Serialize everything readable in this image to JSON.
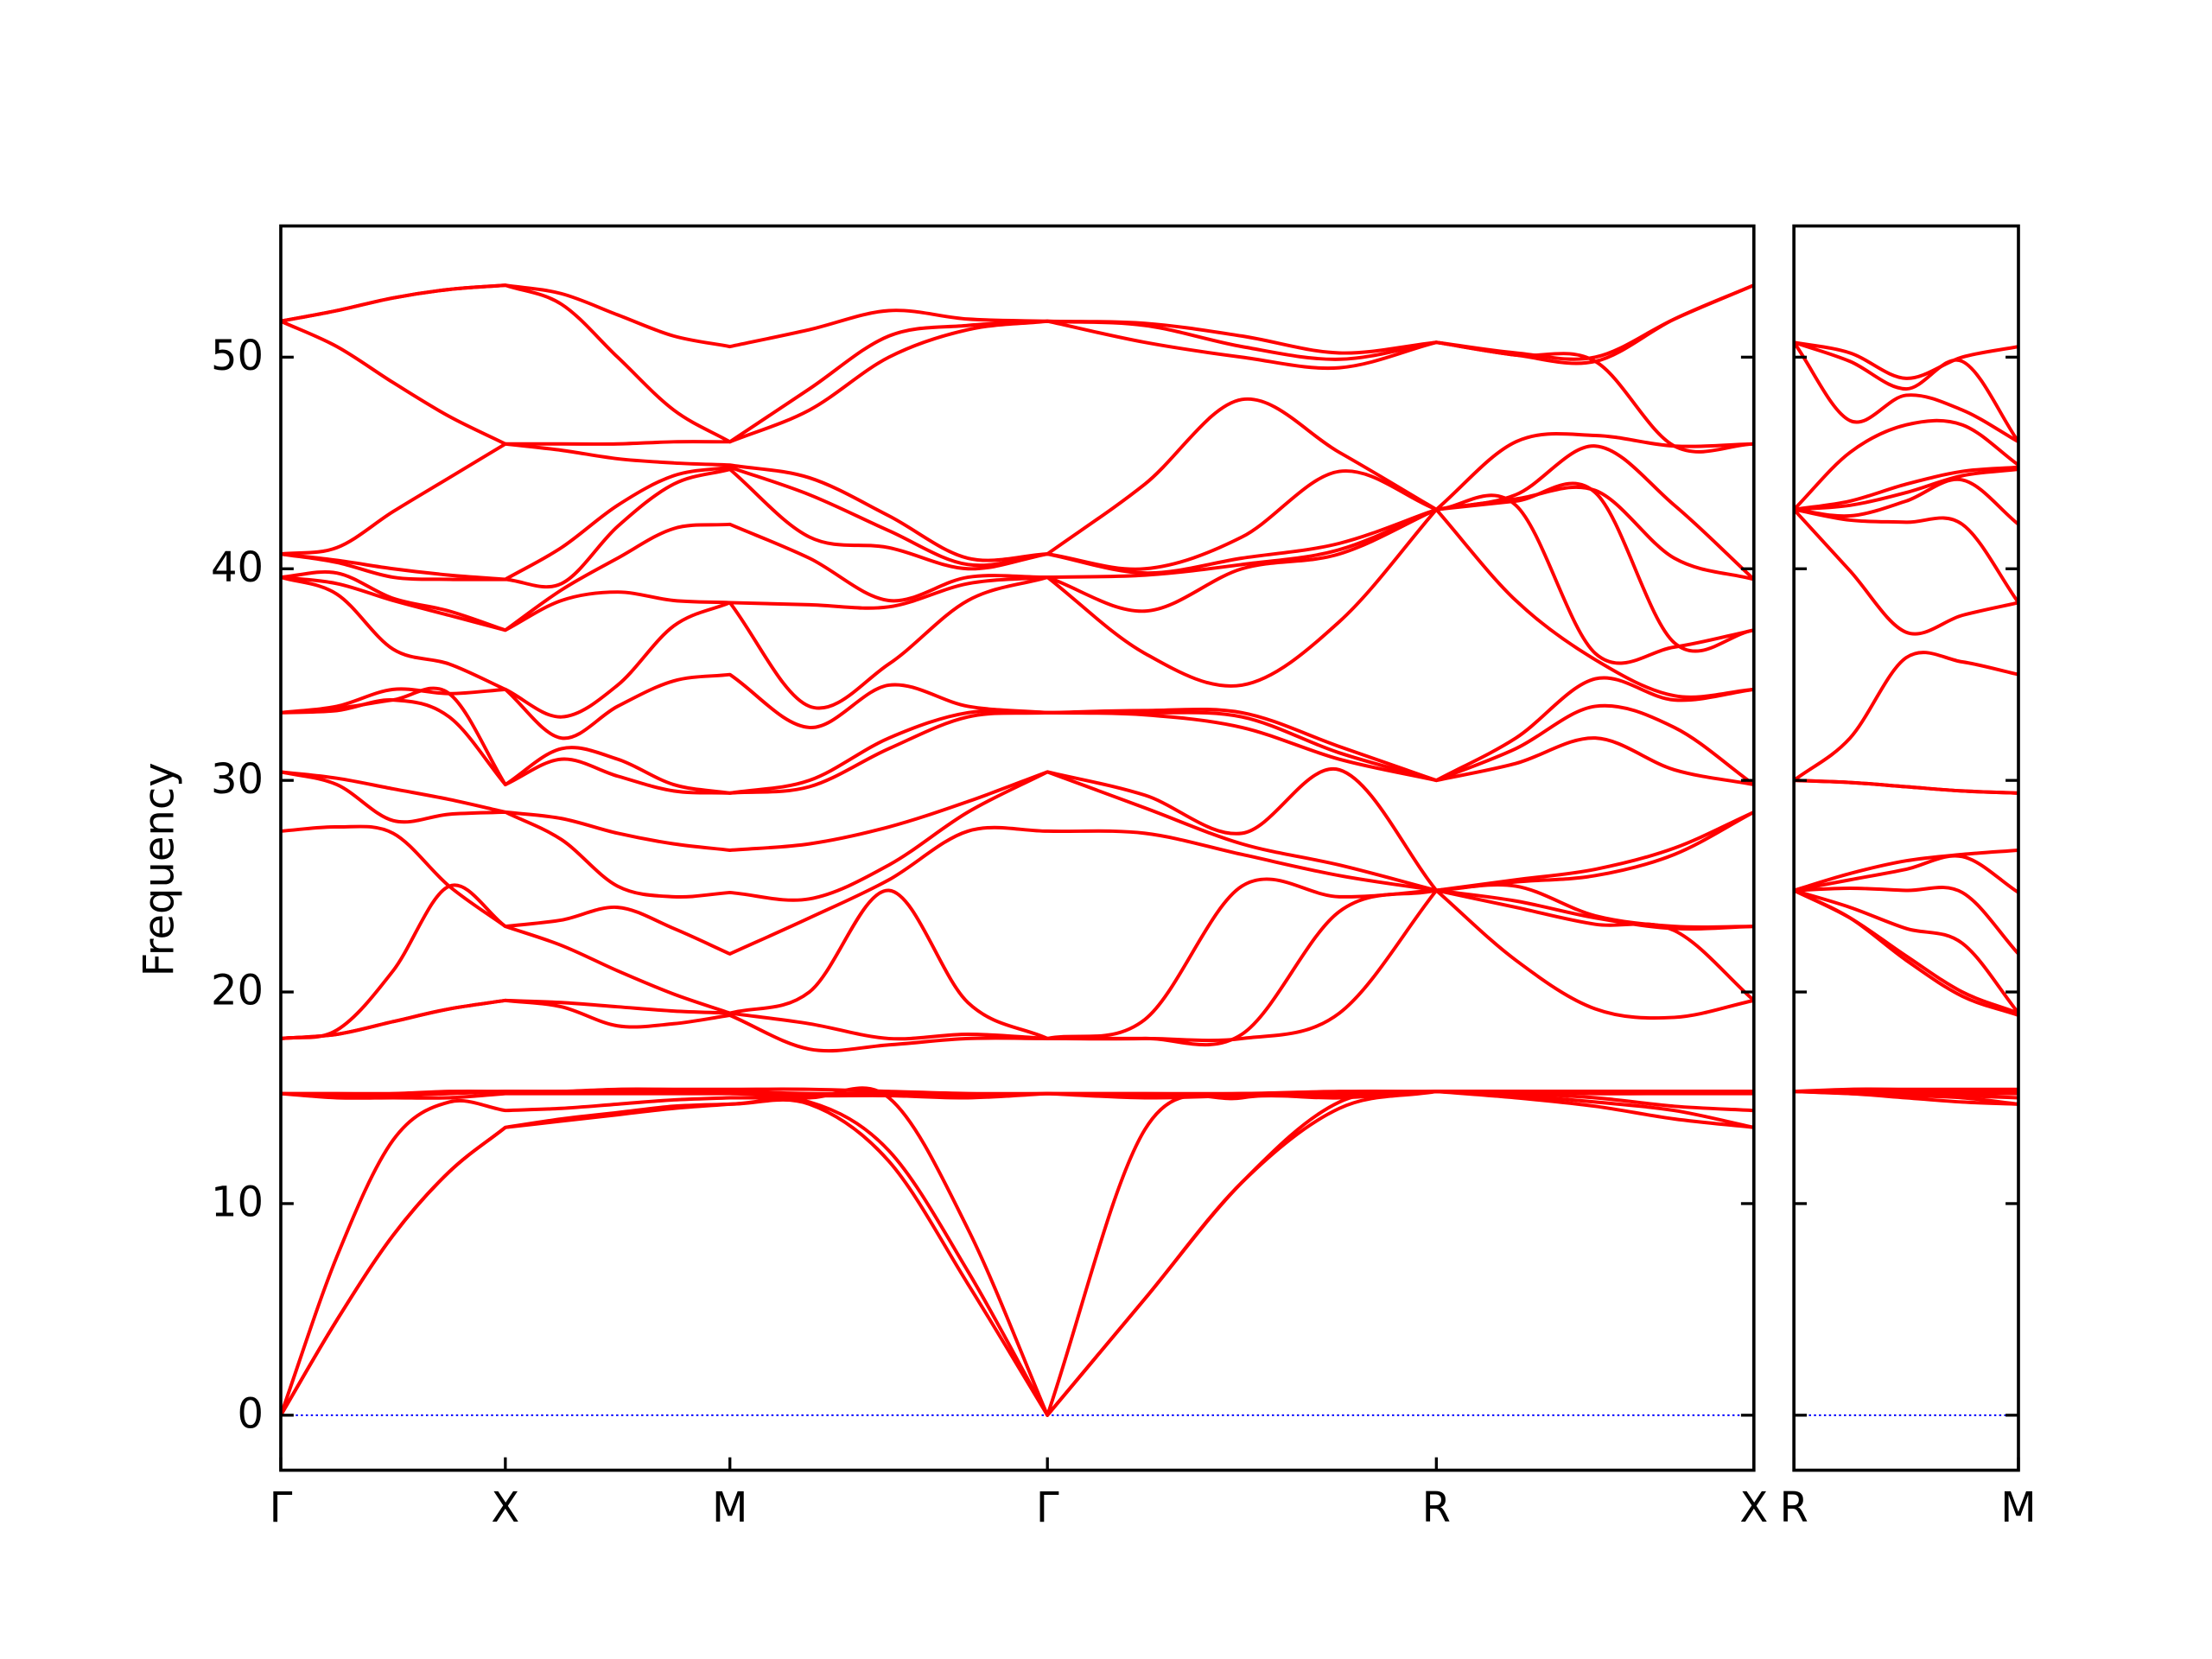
{
  "chart_data": [
    {
      "type": "line",
      "ylabel": "Frequency",
      "color": "#ff0000",
      "hline": 0,
      "hline_color": "#0000ff",
      "x": [
        0,
        0.125,
        0.25,
        0.375,
        0.5,
        0.625,
        0.75,
        0.875,
        1.0,
        1.177,
        1.354,
        1.53,
        1.707,
        1.924,
        2.14,
        2.357,
        2.573,
        2.75,
        2.927,
        3.103,
        3.28
      ],
      "xlim": [
        0,
        3.28
      ],
      "xticks": [
        {
          "value": 0,
          "label": "Γ"
        },
        {
          "value": 0.5,
          "label": "X"
        },
        {
          "value": 1.0,
          "label": "M"
        },
        {
          "value": 1.707,
          "label": "Γ"
        },
        {
          "value": 2.573,
          "label": "R"
        },
        {
          "value": 3.28,
          "label": "X"
        }
      ],
      "ylim": [
        -2.6,
        56.2
      ],
      "yticks": [
        0,
        10,
        20,
        30,
        40,
        50
      ],
      "series": [
        {
          "values": [
            0,
            4.5,
            8.5,
            11.5,
            13.6,
            13.9,
            14.2,
            14.5,
            14.7,
            14.7,
            12.0,
            6.2,
            0,
            5.5,
            11.0,
            14.5,
            15.3,
            15.0,
            14.6,
            14.0,
            13.6
          ]
        },
        {
          "values": [
            0,
            4.5,
            8.5,
            11.5,
            13.6,
            14.0,
            14.3,
            14.6,
            14.7,
            14.8,
            12.5,
            6.8,
            0,
            5.5,
            11.0,
            14.8,
            15.3,
            15.1,
            14.8,
            14.4,
            13.6
          ]
        },
        {
          "values": [
            0,
            7.5,
            13.0,
            14.8,
            14.4,
            14.5,
            14.7,
            14.9,
            15.0,
            15.0,
            15.0,
            8.8,
            0,
            13.5,
            15.0,
            15.0,
            15.3,
            15.2,
            15.0,
            14.6,
            14.4
          ]
        },
        {
          "values": [
            15.2,
            15.0,
            15.0,
            15.0,
            15.2,
            15.2,
            15.2,
            15.2,
            15.2,
            15.1,
            15.1,
            15.0,
            15.2,
            15.0,
            15.1,
            15.1,
            15.3,
            15.3,
            15.2,
            15.2,
            15.2
          ]
        },
        {
          "values": [
            15.2,
            15.1,
            15.1,
            15.2,
            15.3,
            15.3,
            15.3,
            15.3,
            15.3,
            15.2,
            15.2,
            15.1,
            15.2,
            15.1,
            15.2,
            15.2,
            15.3,
            15.3,
            15.3,
            15.3,
            15.3
          ]
        },
        {
          "values": [
            15.2,
            15.2,
            15.2,
            15.3,
            15.3,
            15.3,
            15.4,
            15.4,
            15.4,
            15.4,
            15.3,
            15.2,
            15.2,
            15.2,
            15.2,
            15.3,
            15.3,
            15.3,
            15.3,
            15.3,
            15.3
          ]
        },
        {
          "values": [
            17.8,
            18.0,
            18.6,
            19.2,
            19.6,
            19.3,
            18.4,
            18.5,
            18.9,
            17.3,
            17.5,
            17.8,
            17.8,
            17.8,
            17.8,
            19.0,
            24.8,
            21.5,
            19.2,
            18.8,
            19.6
          ]
        },
        {
          "values": [
            17.8,
            18.0,
            18.6,
            19.2,
            19.6,
            19.5,
            19.3,
            19.1,
            19.0,
            18.5,
            17.8,
            18.0,
            17.8,
            17.8,
            18.0,
            23.8,
            24.8,
            24.0,
            23.2,
            22.9,
            19.6
          ]
        },
        {
          "values": [
            17.8,
            18.2,
            21.0,
            25.0,
            23.1,
            22.2,
            21.0,
            19.9,
            19.0,
            20.0,
            24.8,
            19.5,
            17.8,
            18.7,
            25.0,
            24.5,
            24.8,
            24.3,
            23.5,
            23.0,
            23.1
          ]
        },
        {
          "values": [
            27.6,
            27.8,
            27.5,
            25.0,
            23.1,
            23.4,
            24.0,
            23.0,
            21.8,
            23.5,
            25.3,
            27.6,
            27.6,
            27.5,
            26.5,
            25.5,
            24.8,
            25.0,
            23.6,
            23.1,
            23.1
          ]
        },
        {
          "values": [
            30.4,
            29.8,
            28.1,
            28.4,
            28.5,
            27.2,
            25.0,
            24.5,
            24.7,
            24.4,
            26.0,
            28.5,
            30.4,
            28.7,
            27.0,
            26.0,
            24.8,
            25.2,
            25.5,
            26.5,
            28.5
          ]
        },
        {
          "values": [
            30.4,
            30.1,
            29.6,
            29.1,
            28.5,
            28.2,
            27.5,
            27.0,
            26.7,
            27.0,
            27.8,
            29.0,
            30.4,
            29.3,
            27.5,
            30.5,
            24.8,
            25.3,
            25.8,
            26.8,
            28.5
          ]
        },
        {
          "values": [
            33.2,
            33.3,
            33.8,
            33.0,
            29.8,
            31.0,
            30.2,
            29.5,
            29.4,
            29.7,
            31.5,
            33.0,
            33.2,
            33.1,
            32.5,
            31.0,
            30.0,
            30.8,
            32.0,
            30.5,
            29.8
          ]
        },
        {
          "values": [
            33.2,
            33.4,
            33.8,
            34.1,
            29.8,
            31.5,
            31.0,
            29.8,
            29.4,
            30.0,
            32.0,
            33.2,
            33.2,
            33.2,
            33.0,
            31.3,
            30.0,
            31.5,
            33.5,
            32.5,
            29.8
          ]
        },
        {
          "values": [
            33.2,
            33.5,
            34.3,
            34.1,
            34.3,
            32.0,
            33.5,
            34.7,
            35.0,
            32.5,
            34.5,
            33.5,
            33.2,
            33.3,
            33.2,
            31.6,
            30.0,
            32.0,
            34.8,
            33.8,
            34.3
          ]
        },
        {
          "values": [
            39.6,
            38.8,
            36.2,
            35.5,
            34.3,
            33.0,
            34.5,
            37.3,
            38.4,
            33.5,
            35.5,
            38.5,
            39.6,
            36.0,
            34.5,
            37.5,
            42.8,
            38.5,
            35.7,
            34.0,
            34.3
          ]
        },
        {
          "values": [
            39.6,
            39.3,
            38.5,
            37.8,
            37.1,
            38.5,
            38.9,
            38.5,
            38.4,
            38.3,
            38.2,
            39.3,
            39.6,
            38.0,
            40.0,
            40.7,
            42.8,
            43.0,
            36.0,
            36.3,
            37.1
          ]
        },
        {
          "values": [
            39.6,
            39.8,
            38.6,
            38.0,
            37.1,
            39.0,
            40.5,
            41.9,
            42.1,
            40.5,
            38.5,
            39.6,
            39.6,
            39.7,
            40.2,
            40.9,
            42.8,
            43.2,
            43.6,
            36.5,
            37.1
          ]
        },
        {
          "values": [
            40.7,
            40.3,
            39.6,
            39.5,
            39.5,
            39.3,
            42.0,
            44.0,
            44.7,
            41.5,
            41.0,
            40.0,
            40.7,
            39.8,
            40.5,
            41.2,
            42.8,
            43.3,
            43.7,
            40.5,
            39.5
          ]
        },
        {
          "values": [
            40.7,
            40.4,
            40.0,
            39.7,
            39.5,
            41.0,
            43.0,
            44.4,
            44.8,
            43.5,
            41.8,
            40.2,
            40.7,
            40.0,
            41.5,
            44.6,
            42.8,
            43.5,
            45.8,
            43.0,
            39.5
          ]
        },
        {
          "values": [
            40.7,
            41.0,
            42.7,
            44.3,
            45.9,
            45.6,
            45.2,
            45.0,
            44.9,
            44.3,
            42.5,
            40.5,
            40.7,
            44.0,
            48.0,
            45.5,
            42.8,
            46.0,
            46.3,
            45.8,
            45.9
          ]
        },
        {
          "values": [
            51.7,
            50.5,
            48.8,
            47.2,
            45.9,
            45.9,
            45.9,
            46.0,
            46.0,
            47.5,
            50.0,
            51.3,
            51.7,
            50.7,
            50.0,
            49.5,
            50.7,
            50.1,
            49.8,
            45.8,
            45.9
          ]
        },
        {
          "values": [
            51.7,
            52.2,
            52.8,
            53.2,
            53.4,
            52.5,
            50.0,
            47.5,
            46.0,
            48.5,
            51.0,
            51.5,
            51.7,
            51.5,
            50.5,
            49.9,
            50.7,
            50.1,
            49.8,
            51.8,
            53.4
          ]
        },
        {
          "values": [
            51.7,
            52.2,
            52.8,
            53.2,
            53.4,
            53.0,
            52.0,
            51.0,
            50.5,
            51.3,
            52.2,
            51.8,
            51.7,
            51.6,
            51.0,
            50.2,
            50.7,
            50.2,
            50.0,
            51.8,
            53.4
          ]
        }
      ]
    },
    {
      "type": "line",
      "color": "#ff0000",
      "hline": 0,
      "hline_color": "#0000ff",
      "ytick_labels": false,
      "x": [
        0,
        0.125,
        0.25,
        0.375,
        0.5
      ],
      "xlim": [
        0,
        0.5
      ],
      "xticks": [
        {
          "value": 0,
          "label": "R"
        },
        {
          "value": 0.5,
          "label": "M"
        }
      ],
      "ylim": [
        -2.6,
        56.2
      ],
      "yticks": [
        0,
        10,
        20,
        30,
        40,
        50
      ],
      "series": [
        {
          "values": [
            15.3,
            15.2,
            15.0,
            14.8,
            14.7
          ]
        },
        {
          "values": [
            15.3,
            15.2,
            15.1,
            15.0,
            14.7
          ]
        },
        {
          "values": [
            15.3,
            15.3,
            15.2,
            15.1,
            15.0
          ]
        },
        {
          "values": [
            15.3,
            15.3,
            15.3,
            15.2,
            15.2
          ]
        },
        {
          "values": [
            15.3,
            15.3,
            15.3,
            15.3,
            15.3
          ]
        },
        {
          "values": [
            15.3,
            15.4,
            15.4,
            15.4,
            15.4
          ]
        },
        {
          "values": [
            24.8,
            23.5,
            21.5,
            19.8,
            18.9
          ]
        },
        {
          "values": [
            24.8,
            23.5,
            21.7,
            20.0,
            19.0
          ]
        },
        {
          "values": [
            24.8,
            24.0,
            23.0,
            22.3,
            19.0
          ]
        },
        {
          "values": [
            24.8,
            24.9,
            24.8,
            24.7,
            21.8
          ]
        },
        {
          "values": [
            24.8,
            25.3,
            25.8,
            26.4,
            24.7
          ]
        },
        {
          "values": [
            24.8,
            25.6,
            26.2,
            26.5,
            26.7
          ]
        },
        {
          "values": [
            30.0,
            29.9,
            29.7,
            29.5,
            29.4
          ]
        },
        {
          "values": [
            30.0,
            29.9,
            29.7,
            29.5,
            29.4
          ]
        },
        {
          "values": [
            30.0,
            32.0,
            35.8,
            35.6,
            35.0
          ]
        },
        {
          "values": [
            42.8,
            39.9,
            37.0,
            37.8,
            38.4
          ]
        },
        {
          "values": [
            42.8,
            42.3,
            42.2,
            42.1,
            38.4
          ]
        },
        {
          "values": [
            42.8,
            42.5,
            43.2,
            44.2,
            42.1
          ]
        },
        {
          "values": [
            42.8,
            43.0,
            43.6,
            44.4,
            44.7
          ]
        },
        {
          "values": [
            42.8,
            43.2,
            44.0,
            44.6,
            44.8
          ]
        },
        {
          "values": [
            42.8,
            45.5,
            46.8,
            46.8,
            44.9
          ]
        },
        {
          "values": [
            50.7,
            47.0,
            48.2,
            47.5,
            46.0
          ]
        },
        {
          "values": [
            50.7,
            49.8,
            48.5,
            49.8,
            46.0
          ]
        },
        {
          "values": [
            50.7,
            50.2,
            49.0,
            50.0,
            50.5
          ]
        }
      ]
    }
  ]
}
